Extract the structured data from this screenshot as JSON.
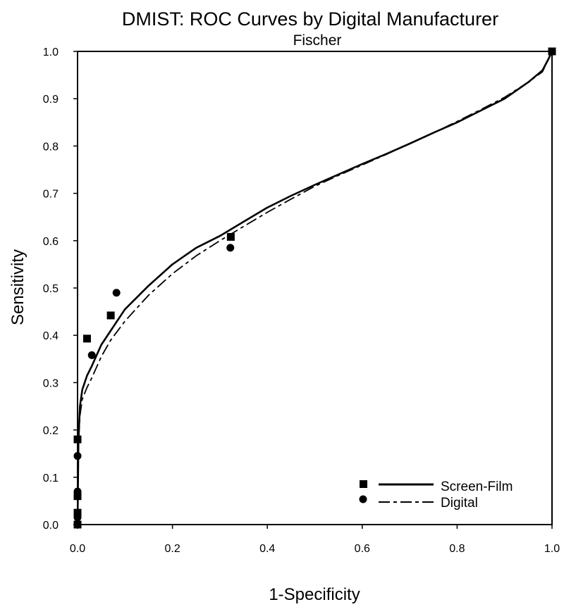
{
  "chart_data": {
    "type": "line",
    "title": "DMIST: ROC Curves by Digital Manufacturer",
    "subtitle": "Fischer",
    "xlabel": "1-Specificity",
    "ylabel": "Sensitivity",
    "xlim": [
      0.0,
      1.0
    ],
    "ylim": [
      0.0,
      1.0
    ],
    "x_ticks": [
      "0.0",
      "0.2",
      "0.4",
      "0.6",
      "0.8",
      "1.0"
    ],
    "y_ticks": [
      "0.0",
      "0.1",
      "0.2",
      "0.3",
      "0.4",
      "0.5",
      "0.6",
      "0.7",
      "0.8",
      "0.9",
      "1.0"
    ],
    "grid": false,
    "legend_position": "bottom-right",
    "series": [
      {
        "name": "Screen-Film",
        "marker": "square",
        "line_style": "solid",
        "color": "#000000",
        "curve": [
          [
            0.0,
            0.0
          ],
          [
            0.002,
            0.18
          ],
          [
            0.005,
            0.25
          ],
          [
            0.01,
            0.285
          ],
          [
            0.02,
            0.315
          ],
          [
            0.03,
            0.335
          ],
          [
            0.05,
            0.38
          ],
          [
            0.07,
            0.41
          ],
          [
            0.1,
            0.455
          ],
          [
            0.15,
            0.505
          ],
          [
            0.2,
            0.55
          ],
          [
            0.25,
            0.585
          ],
          [
            0.3,
            0.61
          ],
          [
            0.35,
            0.64
          ],
          [
            0.4,
            0.67
          ],
          [
            0.45,
            0.695
          ],
          [
            0.5,
            0.718
          ],
          [
            0.55,
            0.74
          ],
          [
            0.6,
            0.762
          ],
          [
            0.65,
            0.783
          ],
          [
            0.7,
            0.805
          ],
          [
            0.75,
            0.828
          ],
          [
            0.8,
            0.85
          ],
          [
            0.85,
            0.875
          ],
          [
            0.9,
            0.9
          ],
          [
            0.95,
            0.935
          ],
          [
            0.98,
            0.96
          ],
          [
            0.993,
            0.985
          ],
          [
            1.0,
            1.0
          ]
        ],
        "points": [
          [
            0.0,
            0.0
          ],
          [
            0.0,
            0.025
          ],
          [
            0.0,
            0.06
          ],
          [
            0.0,
            0.18
          ],
          [
            0.02,
            0.393
          ],
          [
            0.07,
            0.442
          ],
          [
            0.323,
            0.608
          ],
          [
            1.0,
            1.0
          ]
        ]
      },
      {
        "name": "Digital",
        "marker": "circle",
        "line_style": "dashed",
        "color": "#000000",
        "curve": [
          [
            0.0,
            0.0
          ],
          [
            0.002,
            0.17
          ],
          [
            0.005,
            0.23
          ],
          [
            0.01,
            0.265
          ],
          [
            0.02,
            0.29
          ],
          [
            0.03,
            0.31
          ],
          [
            0.05,
            0.355
          ],
          [
            0.07,
            0.39
          ],
          [
            0.1,
            0.43
          ],
          [
            0.15,
            0.485
          ],
          [
            0.2,
            0.53
          ],
          [
            0.25,
            0.568
          ],
          [
            0.3,
            0.6
          ],
          [
            0.35,
            0.63
          ],
          [
            0.4,
            0.66
          ],
          [
            0.45,
            0.688
          ],
          [
            0.5,
            0.715
          ],
          [
            0.55,
            0.738
          ],
          [
            0.6,
            0.76
          ],
          [
            0.65,
            0.782
          ],
          [
            0.7,
            0.805
          ],
          [
            0.75,
            0.828
          ],
          [
            0.8,
            0.852
          ],
          [
            0.85,
            0.877
          ],
          [
            0.9,
            0.903
          ],
          [
            0.95,
            0.935
          ],
          [
            0.98,
            0.957
          ],
          [
            0.993,
            0.985
          ],
          [
            1.0,
            1.0
          ]
        ],
        "points": [
          [
            0.0,
            0.0
          ],
          [
            0.0,
            0.015
          ],
          [
            0.0,
            0.07
          ],
          [
            0.0,
            0.145
          ],
          [
            0.03,
            0.358
          ],
          [
            0.082,
            0.49
          ],
          [
            0.322,
            0.585
          ],
          [
            1.0,
            1.0
          ]
        ]
      }
    ]
  }
}
